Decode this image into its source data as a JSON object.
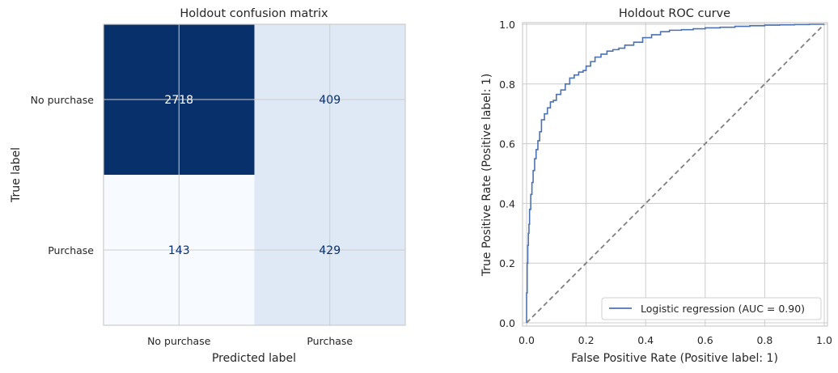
{
  "chart_data": [
    {
      "type": "heatmap",
      "title": "Holdout confusion matrix",
      "xlabel": "Predicted label",
      "ylabel": "True label",
      "row_labels": [
        "No purchase",
        "Purchase"
      ],
      "col_labels": [
        "No purchase",
        "Purchase"
      ],
      "values": [
        [
          2718,
          409
        ],
        [
          143,
          429
        ]
      ],
      "colormap": "Blues",
      "cell_colors": [
        [
          "#08306b",
          "#dfe9f5"
        ],
        [
          "#f7fbff",
          "#dfe9f5"
        ]
      ],
      "text_colors": [
        [
          "#ffffff",
          "#08306b"
        ],
        [
          "#08306b",
          "#08306b"
        ]
      ],
      "grid": true
    },
    {
      "type": "line",
      "title": "Holdout ROC curve",
      "xlabel": "False Positive Rate (Positive label: 1)",
      "ylabel": "True Positive Rate (Positive label: 1)",
      "xlim": [
        0,
        1
      ],
      "ylim": [
        0,
        1
      ],
      "xticks": [
        "0.0",
        "0.2",
        "0.4",
        "0.6",
        "0.8",
        "1.0"
      ],
      "yticks": [
        "0.0",
        "0.2",
        "0.4",
        "0.6",
        "0.8",
        "1.0"
      ],
      "grid": true,
      "legend_position": "lower-right",
      "series": [
        {
          "name": "Logistic regression (AUC = 0.90)",
          "color": "#4c72b0",
          "x": [
            0,
            0.002,
            0.004,
            0.006,
            0.008,
            0.01,
            0.014,
            0.018,
            0.022,
            0.027,
            0.032,
            0.038,
            0.044,
            0.05,
            0.06,
            0.07,
            0.08,
            0.09,
            0.1,
            0.115,
            0.13,
            0.145,
            0.16,
            0.175,
            0.19,
            0.2,
            0.215,
            0.23,
            0.25,
            0.27,
            0.29,
            0.31,
            0.33,
            0.36,
            0.39,
            0.42,
            0.45,
            0.48,
            0.52,
            0.56,
            0.6,
            0.65,
            0.7,
            0.75,
            0.8,
            0.85,
            0.9,
            0.95,
            1.0
          ],
          "y": [
            0,
            0.1,
            0.2,
            0.26,
            0.3,
            0.33,
            0.38,
            0.43,
            0.47,
            0.51,
            0.55,
            0.58,
            0.61,
            0.64,
            0.68,
            0.7,
            0.72,
            0.74,
            0.745,
            0.765,
            0.78,
            0.8,
            0.82,
            0.83,
            0.84,
            0.845,
            0.86,
            0.875,
            0.89,
            0.9,
            0.91,
            0.915,
            0.92,
            0.93,
            0.94,
            0.955,
            0.965,
            0.975,
            0.98,
            0.982,
            0.985,
            0.988,
            0.99,
            0.993,
            0.995,
            0.997,
            0.998,
            0.999,
            1.0
          ]
        },
        {
          "name": "",
          "color": "#7f7f7f",
          "style": "dashed",
          "x": [
            0,
            1
          ],
          "y": [
            0,
            1
          ]
        }
      ]
    }
  ]
}
